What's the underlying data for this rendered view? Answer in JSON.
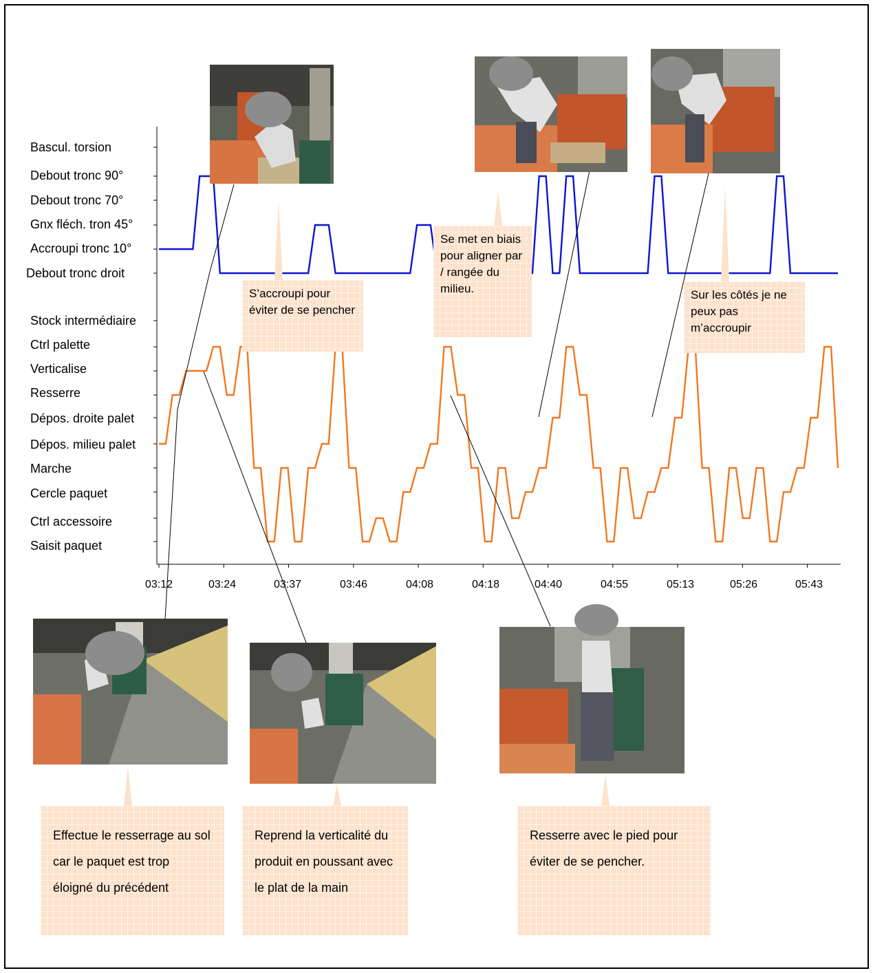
{
  "chart_data": {
    "type": "line",
    "title": "",
    "xlabel": "",
    "ylabel": "",
    "x_ticks": [
      "03:12",
      "03:24",
      "03:37",
      "03:46",
      "04:08",
      "04:18",
      "04:40",
      "04:55",
      "05:13",
      "05:26",
      "05:43"
    ],
    "y_categories": {
      "posture": [
        "Debout tronc droit",
        "Accroupi tronc 10°",
        "Gnx fléch. tron 45°",
        "Debout tronc 70°",
        "Debout tronc 90°",
        "Bascul. torsion"
      ],
      "activity": [
        "Saisit paquet",
        "Ctrl accessoire",
        "Cercle paquet",
        "Marche",
        "Dépos. milieu palet",
        "Dépos. droite palet",
        "Resserre",
        "Verticalise",
        "Ctrl palette",
        "Stock intermédiaire"
      ]
    },
    "series": [
      {
        "color": "#0a14d4",
        "x": [
          0,
          0.05,
          0.06,
          0.08,
          0.09,
          0.22,
          0.23,
          0.25,
          0.26,
          0.37,
          0.38,
          0.4,
          0.41,
          0.55,
          0.56,
          0.57,
          0.58,
          0.59,
          0.6,
          0.61,
          0.62,
          0.72,
          0.73,
          0.74,
          0.75,
          0.9,
          0.91,
          0.92,
          0.93,
          1.0
        ],
        "y": [
          1,
          1,
          4,
          4,
          0,
          0,
          2,
          2,
          0,
          0,
          2,
          2,
          0,
          0,
          4,
          4,
          0,
          0,
          4,
          4,
          0,
          0,
          4,
          4,
          0,
          0,
          4,
          4,
          0,
          0
        ]
      },
      {
        "color": "#f07820",
        "x": [
          0,
          0.01,
          0.02,
          0.03,
          0.04,
          0.07,
          0.08,
          0.09,
          0.1,
          0.11,
          0.12,
          0.13,
          0.14,
          0.15,
          0.16,
          0.17,
          0.18,
          0.19,
          0.2,
          0.21,
          0.22,
          0.23,
          0.24,
          0.25,
          0.26,
          0.27,
          0.28,
          0.29,
          0.3,
          0.31,
          0.32,
          0.33,
          0.34,
          0.35,
          0.36,
          0.37,
          0.38,
          0.39,
          0.4,
          0.41,
          0.42,
          0.43,
          0.44,
          0.45,
          0.46,
          0.47,
          0.48,
          0.49,
          0.5,
          0.51,
          0.52,
          0.53,
          0.54,
          0.55,
          0.56,
          0.57,
          0.58,
          0.59,
          0.6,
          0.61,
          0.62,
          0.63,
          0.64,
          0.65,
          0.66,
          0.67,
          0.68,
          0.69,
          0.7,
          0.71,
          0.72,
          0.73,
          0.74,
          0.75,
          0.76,
          0.77,
          0.78,
          0.79,
          0.8,
          0.81,
          0.82,
          0.83,
          0.84,
          0.85,
          0.86,
          0.87,
          0.88,
          0.89,
          0.9,
          0.91,
          0.92,
          0.93,
          0.94,
          0.95,
          0.96,
          0.97,
          0.98,
          0.99,
          1.0
        ],
        "y": [
          4,
          4,
          6,
          6,
          7,
          7,
          8,
          8,
          6,
          6,
          8,
          8,
          3,
          3,
          0,
          0,
          3,
          3,
          0,
          0,
          3,
          3,
          4,
          4,
          8,
          8,
          3,
          3,
          0,
          0,
          1,
          1,
          0,
          0,
          2,
          2,
          3,
          3,
          4,
          4,
          8,
          8,
          6,
          6,
          3,
          3,
          0,
          0,
          3,
          3,
          1,
          1,
          2,
          2,
          3,
          3,
          5,
          5,
          8,
          8,
          6,
          6,
          3,
          3,
          0,
          0,
          3,
          3,
          1,
          1,
          2,
          2,
          3,
          3,
          5,
          5,
          8,
          8,
          3,
          3,
          0,
          0,
          3,
          3,
          1,
          1,
          3,
          3,
          0,
          0,
          2,
          2,
          3,
          3,
          5,
          5,
          8,
          8,
          3
        ]
      }
    ]
  },
  "notes": {
    "squat": "S’accroupi pour éviter de se pencher",
    "biais": "Se met en biais pour aligner par / rangée du milieu.",
    "cotes": "Sur les côtés je ne peux pas m’accroupir",
    "resserrage": "Effectue le resserrage au sol car le paquet est trop éloigné du précédent",
    "verticalite": "Reprend la verticalité du produit en poussant avec le plat de la main",
    "pied": "Resserre avec le pied pour éviter de se pencher."
  },
  "colors": {
    "posture_line": "#0a14d4",
    "activity_line": "#f07820",
    "note_fill": "#fde2cc"
  }
}
